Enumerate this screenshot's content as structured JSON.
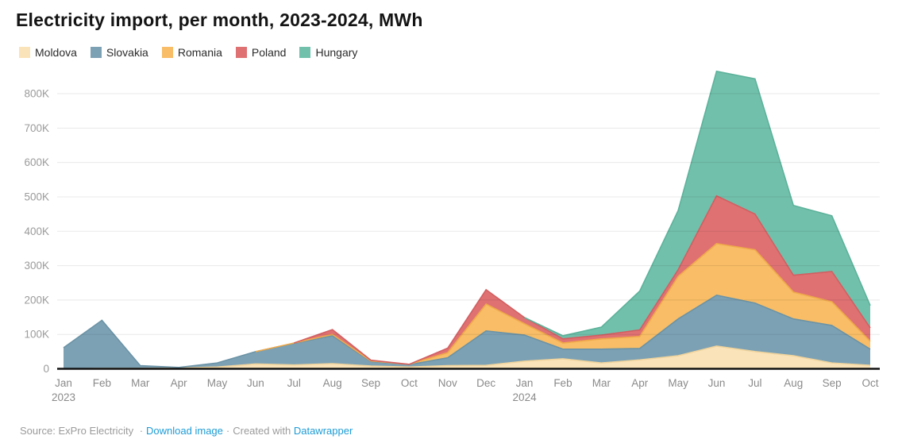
{
  "header": {
    "title": "Electricity import, per month, 2023-2024, MWh"
  },
  "chart_data": {
    "type": "area",
    "stacked": true,
    "unit": "MWh",
    "title": "Electricity import, per month, 2023-2024, MWh",
    "xlabel": "",
    "ylabel": "",
    "grid": true,
    "legend_position": "top",
    "ylim": [
      0,
      870000
    ],
    "x": [
      "Jan 2023",
      "Feb 2023",
      "Mar 2023",
      "Apr 2023",
      "May 2023",
      "Jun 2023",
      "Jul 2023",
      "Aug 2023",
      "Sep 2023",
      "Oct 2023",
      "Nov 2023",
      "Dec 2023",
      "Jan 2024",
      "Feb 2024",
      "Mar 2024",
      "Apr 2024",
      "May 2024",
      "Jun 2024",
      "Jul 2024",
      "Aug 2024",
      "Sep 2024",
      "Oct 2024"
    ],
    "x_tick_labels": [
      "Jan",
      "Feb",
      "Mar",
      "Apr",
      "May",
      "Jun",
      "Jul",
      "Aug",
      "Sep",
      "Oct",
      "Nov",
      "Dec",
      "Jan",
      "Feb",
      "Mar",
      "Apr",
      "May",
      "Jun",
      "Jul",
      "Aug",
      "Sep",
      "Oct"
    ],
    "x_year_labels": [
      {
        "index": 0,
        "label": "2023"
      },
      {
        "index": 12,
        "label": "2024"
      }
    ],
    "y_ticks": [
      {
        "value": 0,
        "label": "0"
      },
      {
        "value": 100000,
        "label": "100K"
      },
      {
        "value": 200000,
        "label": "200K"
      },
      {
        "value": 300000,
        "label": "300K"
      },
      {
        "value": 400000,
        "label": "400K"
      },
      {
        "value": 500000,
        "label": "500K"
      },
      {
        "value": 600000,
        "label": "600K"
      },
      {
        "value": 700000,
        "label": "700K"
      },
      {
        "value": 800000,
        "label": "800K"
      }
    ],
    "series": [
      {
        "name": "Moldova",
        "color": "#FBE3B9",
        "line_color": "#F0D49C",
        "values": [
          0,
          1000,
          1000,
          2000,
          5000,
          14000,
          11000,
          15000,
          8000,
          5000,
          9000,
          10000,
          22000,
          29000,
          17000,
          26000,
          38000,
          66000,
          50000,
          38000,
          17000,
          10000
        ]
      },
      {
        "name": "Slovakia",
        "color": "#7DA1B4",
        "line_color": "#6B93A6",
        "values": [
          61000,
          140000,
          8000,
          2000,
          12000,
          36000,
          63000,
          81000,
          13000,
          7000,
          23000,
          100000,
          76000,
          28000,
          40000,
          33000,
          107000,
          148000,
          141000,
          107000,
          109000,
          47000
        ]
      },
      {
        "name": "Romania",
        "color": "#F8BD66",
        "line_color": "#EFA94A",
        "values": [
          0,
          0,
          0,
          0,
          0,
          0,
          1000,
          4000,
          2000,
          1000,
          15000,
          78000,
          33000,
          18000,
          30000,
          35000,
          124000,
          150000,
          155000,
          78000,
          69000,
          23000
        ]
      },
      {
        "name": "Poland",
        "color": "#DF7173",
        "line_color": "#D25F61",
        "values": [
          0,
          0,
          0,
          0,
          0,
          0,
          0,
          14000,
          2000,
          0,
          13000,
          42000,
          18000,
          12000,
          11000,
          19000,
          19000,
          139000,
          104000,
          49000,
          88000,
          39000
        ]
      },
      {
        "name": "Hungary",
        "color": "#71C0AB",
        "line_color": "#5CB29A",
        "values": [
          0,
          0,
          0,
          0,
          0,
          0,
          0,
          0,
          0,
          0,
          0,
          0,
          0,
          9000,
          23000,
          113000,
          172000,
          362000,
          393000,
          203000,
          162000,
          65000
        ]
      }
    ]
  },
  "axes_style": {
    "tick_label_color": "#9b9b9b",
    "month_label_color": "#8a8a8a",
    "gridline_color": "#000000",
    "baseline_color": "#111111"
  },
  "footer": {
    "source_prefix": "Source:",
    "source_name": "ExPro Electricity",
    "sep": "·",
    "download_label": "Download image",
    "created_label": "Created with",
    "datawrapper_label": "Datawrapper",
    "link_color": "#1E9CD6"
  }
}
